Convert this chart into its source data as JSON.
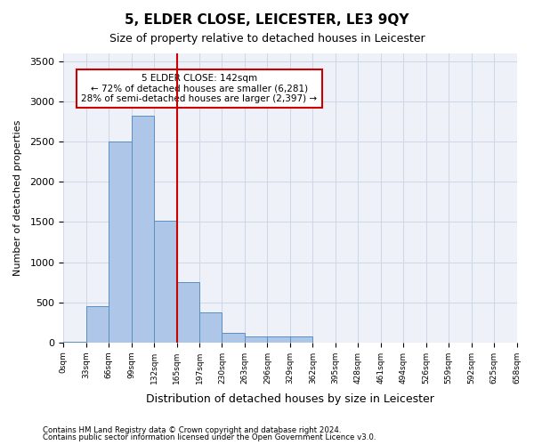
{
  "title": "5, ELDER CLOSE, LEICESTER, LE3 9QY",
  "subtitle": "Size of property relative to detached houses in Leicester",
  "xlabel": "Distribution of detached houses by size in Leicester",
  "ylabel": "Number of detached properties",
  "footnote1": "Contains HM Land Registry data © Crown copyright and database right 2024.",
  "footnote2": "Contains public sector information licensed under the Open Government Licence v3.0.",
  "annotation_line1": "5 ELDER CLOSE: 142sqm",
  "annotation_line2": "← 72% of detached houses are smaller (6,281)",
  "annotation_line3": "28% of semi-detached houses are larger (2,397) →",
  "bar_color": "#aec6e8",
  "bar_edge_color": "#5a8fc0",
  "vline_color": "#cc0000",
  "vline_x": 4.5,
  "bin_labels": [
    "0sqm",
    "33sqm",
    "66sqm",
    "99sqm",
    "132sqm",
    "165sqm",
    "197sqm",
    "230sqm",
    "263sqm",
    "296sqm",
    "329sqm",
    "362sqm",
    "395sqm",
    "428sqm",
    "461sqm",
    "494sqm",
    "526sqm",
    "559sqm",
    "592sqm",
    "625sqm",
    "658sqm"
  ],
  "bar_heights": [
    10,
    450,
    2500,
    2820,
    1520,
    750,
    375,
    125,
    75,
    75,
    75,
    0,
    0,
    0,
    0,
    0,
    0,
    0,
    0,
    0
  ],
  "ylim": [
    0,
    3600
  ],
  "yticks": [
    0,
    500,
    1000,
    1500,
    2000,
    2500,
    3000,
    3500
  ],
  "grid_color": "#d0d8e8",
  "background_color": "#eef2f8",
  "annotation_box_color": "#ffffff",
  "annotation_box_edge": "#cc0000"
}
